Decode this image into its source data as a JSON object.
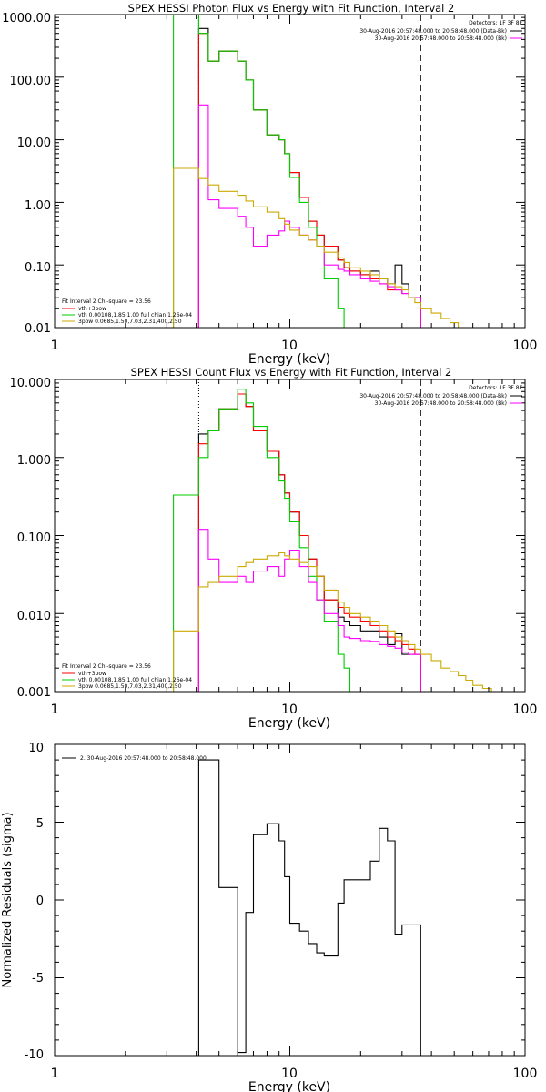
{
  "chart_data": [
    {
      "type": "line",
      "title": "SPEX HESSI Photon Flux vs Energy with Fit Function, Interval 2",
      "xlabel": "Energy (keV)",
      "ylabel": "",
      "xscale": "log",
      "yscale": "log",
      "xlim": [
        1,
        100
      ],
      "ylim": [
        0.01,
        1000
      ],
      "x_ticks": [
        "1",
        "10",
        "100"
      ],
      "y_ticks": [
        "1000.00",
        "100.00",
        "10.00",
        "1.00",
        "0.10",
        "0.01"
      ],
      "dotted_line_x": 4.1,
      "dashed_line_x": 36,
      "header_right": {
        "detectors": "Detectors: 1F 3F 8F",
        "data_line": "30-Aug-2016 20:57:48.000 to 20:58:48.000 (Data-Bk)",
        "bk_line": "30-Aug-2016 20:57:48.000 to 20:58:48.000 (Bk)"
      },
      "legend_left": {
        "fit": "Fit Interval 2   Chi-square = 23.56",
        "items": [
          {
            "label": "vth+3pow",
            "color": "#ff0000"
          },
          {
            "label": "vth 0.00108,1.85,1.00  full chian 1.26e-04",
            "color": "#00cc00"
          },
          {
            "label": "3pow 0.0685,1.50,7.03,2.31,400,2.50",
            "color": "#ccaa00"
          }
        ]
      },
      "series": [
        {
          "color": "#000000",
          "edges": [
            4.1,
            4.5,
            5,
            6,
            6.5,
            7,
            8,
            9,
            9.5,
            10,
            11,
            12,
            13,
            14,
            16,
            17,
            18,
            20,
            22,
            24,
            26,
            28,
            30,
            32,
            34,
            36
          ],
          "values": [
            600,
            180,
            260,
            180,
            90,
            30,
            12,
            10,
            6,
            3,
            1.2,
            0.5,
            0.3,
            0.2,
            0.12,
            0.09,
            0.08,
            0.07,
            0.08,
            0.06,
            0.05,
            0.1,
            0.05,
            0.03,
            0.03
          ]
        },
        {
          "color": "#ff0000",
          "edges": [
            4.1,
            4.5,
            5,
            6,
            6.5,
            7,
            8,
            9,
            9.5,
            10,
            11,
            12,
            13,
            14,
            16,
            17,
            18,
            20,
            22,
            24,
            26,
            28,
            30,
            32,
            34,
            36
          ],
          "values": [
            500,
            180,
            260,
            180,
            90,
            30,
            12,
            10,
            6,
            3,
            1.2,
            0.5,
            0.3,
            0.2,
            0.12,
            0.09,
            0.08,
            0.07,
            0.06,
            0.05,
            0.04,
            0.04,
            0.035,
            0.03,
            0.03
          ]
        },
        {
          "color": "#00cc00",
          "edges": [
            3.2,
            4.1,
            4.5,
            5,
            6,
            6.5,
            7,
            8,
            9,
            9.5,
            10,
            11,
            12,
            13,
            14,
            16,
            17,
            18,
            20,
            20.5
          ],
          "values": [
            1000,
            500,
            180,
            260,
            180,
            90,
            30,
            12,
            10,
            6,
            2.5,
            1,
            0.4,
            0.2,
            0.06,
            0.02,
            0.01,
            0.01,
            0.01
          ]
        },
        {
          "color": "#ff00ff",
          "edges": [
            4.1,
            4.5,
            5,
            6,
            6.5,
            7,
            8,
            9,
            9.5,
            10,
            11,
            12,
            13,
            14,
            16,
            17,
            18,
            20,
            22,
            24,
            26,
            28,
            30,
            32,
            34,
            36
          ],
          "values": [
            36,
            1.1,
            0.8,
            0.6,
            0.4,
            0.2,
            0.3,
            0.35,
            0.5,
            0.4,
            0.3,
            0.25,
            0.2,
            0.1,
            0.085,
            0.08,
            0.07,
            0.06,
            0.055,
            0.05,
            0.045,
            0.04,
            0.035,
            0.03,
            0.03
          ]
        },
        {
          "color": "#ccaa00",
          "edges": [
            3.2,
            4.1,
            4.5,
            5,
            6,
            6.5,
            7,
            8,
            9,
            9.5,
            10,
            11,
            12,
            13,
            14,
            16,
            17,
            18,
            20,
            22,
            24,
            26,
            28,
            30,
            32,
            34,
            36,
            40,
            44,
            48,
            52,
            56,
            60
          ],
          "values": [
            3.5,
            2.4,
            1.9,
            1.5,
            1.3,
            1.05,
            0.85,
            0.7,
            0.55,
            0.45,
            0.36,
            0.3,
            0.25,
            0.2,
            0.16,
            0.13,
            0.11,
            0.09,
            0.08,
            0.07,
            0.06,
            0.05,
            0.045,
            0.04,
            0.03,
            0.025,
            0.02,
            0.017,
            0.014,
            0.012,
            0.01,
            0.01
          ]
        }
      ]
    },
    {
      "type": "line",
      "title": "SPEX HESSI Count Flux vs Energy with Fit Function, Interval 2",
      "xlabel": "Energy (keV)",
      "ylabel": "",
      "xscale": "log",
      "yscale": "log",
      "xlim": [
        1,
        100
      ],
      "ylim": [
        0.001,
        10
      ],
      "x_ticks": [
        "1",
        "10",
        "100"
      ],
      "y_ticks": [
        "10.000",
        "1.000",
        "0.100",
        "0.010",
        "0.001"
      ],
      "dotted_line_x": 4.1,
      "dashed_line_x": 36,
      "header_right": {
        "detectors": "Detectors: 1F 3F 8F",
        "data_line": "30-Aug-2016 20:57:48.000 to 20:58:48.000 (Data-Bk)",
        "bk_line": "30-Aug-2016 20:57:48.000 to 20:58:48.000 (Bk)"
      },
      "legend_left": {
        "fit": "Fit Interval 2   Chi-square = 23.56",
        "items": [
          {
            "label": "vth+3pow",
            "color": "#ff0000"
          },
          {
            "label": "vth 0.00108,1.85,1.00  full chian 1.26e-04",
            "color": "#00cc00"
          },
          {
            "label": "3pow 0.0685,1.50,7.03,2.31,400,2.50",
            "color": "#ccaa00"
          }
        ]
      },
      "series": [
        {
          "color": "#000000",
          "edges": [
            4.1,
            4.5,
            5,
            6,
            6.5,
            7,
            8,
            9,
            9.5,
            10,
            11,
            12,
            13,
            14,
            16,
            17,
            18,
            20,
            22,
            24,
            26,
            28,
            30,
            32,
            34,
            36
          ],
          "values": [
            2,
            2.2,
            4.2,
            6.5,
            4.5,
            2.2,
            1.2,
            0.6,
            0.35,
            0.2,
            0.1,
            0.05,
            0.03,
            0.015,
            0.009,
            0.008,
            0.007,
            0.006,
            0.006,
            0.005,
            0.004,
            0.0055,
            0.003,
            0.003,
            0.003
          ]
        },
        {
          "color": "#ff0000",
          "edges": [
            4.1,
            4.5,
            5,
            6,
            6.5,
            7,
            8,
            9,
            9.5,
            10,
            11,
            12,
            13,
            14,
            16,
            17,
            18,
            20,
            22,
            24,
            26,
            28,
            30,
            32,
            34,
            36
          ],
          "values": [
            1.5,
            2.2,
            4.2,
            6.5,
            4.5,
            2.2,
            1.2,
            0.6,
            0.35,
            0.2,
            0.1,
            0.05,
            0.03,
            0.015,
            0.012,
            0.01,
            0.009,
            0.008,
            0.007,
            0.006,
            0.005,
            0.0045,
            0.004,
            0.0035,
            0.003
          ]
        },
        {
          "color": "#00cc00",
          "edges": [
            3.2,
            4.1,
            4.5,
            5,
            6,
            6.5,
            7,
            8,
            9,
            9.5,
            10,
            11,
            12,
            13,
            14,
            16,
            17,
            18,
            20,
            20.5
          ],
          "values": [
            0.33,
            1,
            2.2,
            4.2,
            7.5,
            5,
            2.5,
            1,
            0.5,
            0.3,
            0.15,
            0.07,
            0.03,
            0.015,
            0.008,
            0.003,
            0.002,
            0.001,
            0.001
          ]
        },
        {
          "color": "#ff00ff",
          "edges": [
            4.1,
            4.5,
            5,
            6,
            6.5,
            7,
            8,
            9,
            9.5,
            10,
            11,
            12,
            13,
            14,
            16,
            17,
            18,
            20,
            22,
            24,
            26,
            28,
            30,
            32,
            34,
            36
          ],
          "values": [
            0.12,
            0.05,
            0.025,
            0.03,
            0.025,
            0.035,
            0.04,
            0.03,
            0.05,
            0.065,
            0.04,
            0.025,
            0.015,
            0.01,
            0.007,
            0.005,
            0.0048,
            0.0045,
            0.0044,
            0.004,
            0.0038,
            0.0036,
            0.0032,
            0.003,
            0.003
          ]
        },
        {
          "color": "#ccaa00",
          "edges": [
            3.2,
            4.1,
            4.5,
            5,
            6,
            6.5,
            7,
            8,
            9,
            9.5,
            10,
            11,
            12,
            13,
            14,
            16,
            17,
            18,
            20,
            22,
            24,
            26,
            28,
            30,
            32,
            34,
            36,
            40,
            44,
            48,
            52,
            56,
            60,
            66,
            72,
            78
          ],
          "values": [
            0.006,
            0.022,
            0.025,
            0.03,
            0.04,
            0.045,
            0.05,
            0.055,
            0.06,
            0.055,
            0.05,
            0.045,
            0.04,
            0.03,
            0.02,
            0.014,
            0.012,
            0.01,
            0.009,
            0.008,
            0.007,
            0.006,
            0.005,
            0.0045,
            0.004,
            0.0035,
            0.003,
            0.0025,
            0.002,
            0.0018,
            0.0016,
            0.0014,
            0.0012,
            0.0011,
            0.001
          ]
        }
      ]
    },
    {
      "type": "line",
      "title": "",
      "xlabel": "Energy (keV)",
      "ylabel": "Normalized Residuals (sigma)",
      "xscale": "log",
      "yscale": "linear",
      "xlim": [
        1,
        100
      ],
      "ylim": [
        -10,
        10
      ],
      "x_ticks": [
        "1",
        "10",
        "100"
      ],
      "y_ticks": [
        "10",
        "5",
        "0",
        "-5",
        "-10"
      ],
      "legend_entry": "2. 30-Aug-2016 20:57:48.000 to 20:58:48.000",
      "series": [
        {
          "color": "#000000",
          "edges": [
            4.1,
            4.5,
            5,
            6,
            6.5,
            7,
            8,
            9,
            9.5,
            10,
            11,
            12,
            13,
            14,
            16,
            17,
            18,
            20,
            22,
            24,
            26,
            28,
            30,
            32,
            34,
            36
          ],
          "values": [
            9,
            9,
            0.8,
            -9.8,
            -0.8,
            4.2,
            4.9,
            3.8,
            1.5,
            -1.5,
            -2,
            -2.8,
            -3.4,
            -3.6,
            -0.2,
            1.3,
            1.3,
            1.3,
            2.5,
            4.6,
            3.8,
            -2.2,
            -1.6,
            -1.6,
            -1.6
          ]
        }
      ]
    }
  ]
}
